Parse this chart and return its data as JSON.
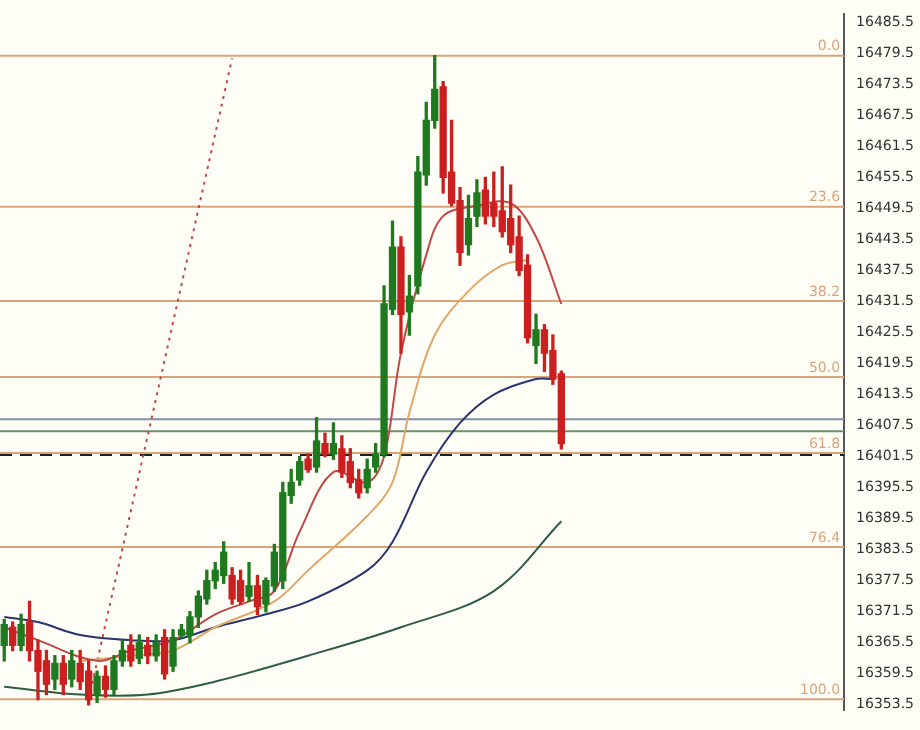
{
  "chart_data": {
    "type": "candlestick",
    "categories": [
      null,
      null,
      null,
      null,
      null,
      null,
      null,
      null,
      null,
      null,
      null,
      null,
      null,
      null,
      null,
      null,
      null,
      null,
      null,
      null,
      null,
      null,
      null,
      null,
      null,
      null,
      null,
      null,
      null,
      null,
      null,
      null,
      null,
      null,
      null,
      null,
      null,
      null,
      null,
      null,
      null,
      null,
      null,
      null,
      null,
      null,
      null,
      null,
      null,
      null,
      null,
      null,
      null,
      null,
      null,
      null,
      null,
      null,
      null,
      null,
      null,
      null,
      null,
      null,
      null,
      null,
      null,
      null,
      null,
      null,
      null,
      null,
      null,
      null,
      null,
      null,
      null,
      null,
      null,
      null,
      null,
      null,
      null,
      null,
      null,
      null,
      null,
      null,
      null,
      null,
      null,
      null,
      null,
      null,
      null,
      null,
      null,
      null,
      null,
      null
    ],
    "ohlc": [
      [
        16365,
        16370,
        16362,
        16369
      ],
      [
        16368.5,
        16369.5,
        16364,
        16365
      ],
      [
        16365,
        16371,
        16364,
        16369
      ],
      [
        16369.5,
        16373.5,
        16362,
        16364
      ],
      [
        16364,
        16366,
        16354.5,
        16360
      ],
      [
        16362,
        16364,
        16355.5,
        16357.5
      ],
      [
        16358.5,
        16363,
        16356.5,
        16361.5
      ],
      [
        16361.5,
        16363,
        16355.5,
        16357.5
      ],
      [
        16358.5,
        16364,
        16357,
        16362
      ],
      [
        16361.5,
        16364,
        16356.5,
        16358
      ],
      [
        16360,
        16362,
        16353.5,
        16354.5
      ],
      [
        16355.5,
        16360,
        16354,
        16359
      ],
      [
        16359,
        16361,
        16355,
        16356.5
      ],
      [
        16356.5,
        16363,
        16355.5,
        16362
      ],
      [
        16362,
        16366,
        16361,
        16364
      ],
      [
        16365,
        16367,
        16361,
        16362
      ],
      [
        16362.5,
        16367,
        16361.5,
        16365.5
      ],
      [
        16365,
        16366.5,
        16361.5,
        16363
      ],
      [
        16363,
        16367,
        16362,
        16365.5
      ],
      [
        16366.5,
        16368,
        16358.5,
        16359.5
      ],
      [
        16361,
        16368,
        16360,
        16366.5
      ],
      [
        16367,
        16369,
        16366.5,
        16368
      ],
      [
        16367,
        16371.5,
        16365.5,
        16370.5
      ],
      [
        16370.5,
        16375.5,
        16368.5,
        16374.5
      ],
      [
        16374,
        16379.5,
        16373,
        16377.5
      ],
      [
        16377.5,
        16381,
        16376,
        16379.5
      ],
      [
        16378.5,
        16385,
        16377,
        16383
      ],
      [
        16378.5,
        16380,
        16373,
        16374
      ],
      [
        16377.5,
        16379.5,
        16373,
        16373.5
      ],
      [
        16374.5,
        16381,
        16373.5,
        16376.5
      ],
      [
        16376.5,
        16378.5,
        16371,
        16372.5
      ],
      [
        16373,
        16378,
        16371.5,
        16377.5
      ],
      [
        16376.5,
        16384.5,
        16375.5,
        16383
      ],
      [
        16377.5,
        16396.5,
        16376,
        16394.5
      ],
      [
        16394,
        16399,
        16392.5,
        16396.5
      ],
      [
        16397,
        16401.5,
        16396,
        16400.5
      ],
      [
        16401,
        16402,
        16398.5,
        16399
      ],
      [
        16399.5,
        16409,
        16398.5,
        16404.5
      ],
      [
        16404,
        16406,
        16401.5,
        16402
      ],
      [
        16402,
        16408,
        16401,
        16404
      ],
      [
        16403,
        16405.5,
        16397.5,
        16398.5
      ],
      [
        16400.5,
        16403,
        16395.5,
        16396.5
      ],
      [
        16397,
        16399,
        16393.5,
        16394.5
      ],
      [
        16395.5,
        16401,
        16394.5,
        16399
      ],
      [
        16399.5,
        16404,
        16398.5,
        16402
      ],
      [
        16402,
        16434.5,
        16401.5,
        16431
      ],
      [
        16430,
        16447,
        16429,
        16442
      ],
      [
        16442,
        16444,
        16421.5,
        16429
      ],
      [
        16429.5,
        16436.5,
        16425,
        16432.5
      ],
      [
        16434.5,
        16459.5,
        16433,
        16456.5
      ],
      [
        16456,
        16470,
        16454,
        16466.5
      ],
      [
        16466.5,
        16479,
        16465,
        16472.5
      ],
      [
        16473,
        16474,
        16452.5,
        16455.5
      ],
      [
        16456.5,
        16466.5,
        16450,
        16450.5
      ],
      [
        16451,
        16453.5,
        16438.5,
        16441
      ],
      [
        16442.5,
        16452,
        16440.5,
        16447.5
      ],
      [
        16448,
        16455,
        16446,
        16452.5
      ],
      [
        16453,
        16455.5,
        16446.5,
        16448
      ],
      [
        16450.5,
        16456.5,
        16446,
        16448
      ],
      [
        16449,
        16457.5,
        16444,
        16445
      ],
      [
        16447.5,
        16454,
        16441,
        16442.5
      ],
      [
        16444,
        16448,
        16436.5,
        16437.5
      ],
      [
        16438.5,
        16440.5,
        16423.5,
        16424.5
      ],
      [
        16423,
        16429,
        16419.5,
        16426
      ],
      [
        16426,
        16427,
        16418,
        16421.5
      ],
      [
        16422,
        16425,
        16415.5,
        16416.5
      ],
      [
        16417.5,
        16418,
        16403,
        16404
      ],
      null,
      null,
      null,
      null,
      null,
      null,
      null,
      null,
      null,
      null,
      null,
      null,
      null,
      null,
      null,
      null,
      null,
      null,
      null,
      null,
      null,
      null,
      null,
      null,
      null,
      null,
      null,
      null,
      null,
      null,
      null,
      null,
      null
    ],
    "colors": [
      "#1f7a1f",
      "#cc1f1f",
      "#1f7a1f",
      "#cc1f1f",
      "#cc1f1f",
      "#cc1f1f",
      "#1f7a1f",
      "#cc1f1f",
      "#1f7a1f",
      "#cc1f1f",
      "#cc1f1f",
      "#1f7a1f",
      "#cc1f1f",
      "#1f7a1f",
      "#1f7a1f",
      "#cc1f1f",
      "#1f7a1f",
      "#cc1f1f",
      "#1f7a1f",
      "#cc1f1f",
      "#1f7a1f",
      "#1f7a1f",
      "#1f7a1f",
      "#1f7a1f",
      "#1f7a1f",
      "#1f7a1f",
      "#1f7a1f",
      "#cc1f1f",
      "#cc1f1f",
      "#1f7a1f",
      "#cc1f1f",
      "#1f7a1f",
      "#1f7a1f",
      "#1f7a1f",
      "#1f7a1f",
      "#1f7a1f",
      "#cc1f1f",
      "#1f7a1f",
      "#cc1f1f",
      "#1f7a1f",
      "#cc1f1f",
      "#cc1f1f",
      "#cc1f1f",
      "#1f7a1f",
      "#1f7a1f",
      "#1f7a1f",
      "#1f7a1f",
      "#cc1f1f",
      "#1f7a1f",
      "#1f7a1f",
      "#1f7a1f",
      "#1f7a1f",
      "#cc1f1f",
      "#cc1f1f",
      "#cc1f1f",
      "#1f7a1f",
      "#1f7a1f",
      "#cc1f1f",
      "#cc1f1f",
      "#cc1f1f",
      "#cc1f1f",
      "#cc1f1f",
      "#cc1f1f",
      "#1f7a1f",
      "#cc1f1f",
      "#cc1f1f",
      "#cc1f1f",
      null,
      null,
      null,
      null,
      null,
      null,
      null,
      null,
      null,
      null,
      null,
      null,
      null,
      null,
      null,
      null,
      null,
      null,
      null,
      null,
      null,
      null,
      null,
      null,
      null,
      null,
      null,
      null,
      null,
      null,
      null,
      null,
      null
    ],
    "series": [
      {
        "type": "line",
        "color": "#c04848",
        "values": [
          16368.5,
          null,
          null,
          null,
          16366,
          null,
          null,
          null,
          null,
          null,
          null,
          16362,
          null,
          null,
          null,
          16364,
          null,
          null,
          null,
          null,
          16366,
          null,
          null,
          null,
          null,
          16371,
          null,
          null,
          null,
          16373.5,
          null,
          null,
          16375.5,
          null,
          null,
          16387,
          null,
          null,
          null,
          16398.5,
          null,
          null,
          null,
          16396.5,
          null,
          16401.5,
          null,
          16421.5,
          null,
          null,
          16440.5,
          null,
          16448,
          null,
          null,
          null,
          16450,
          null,
          null,
          null,
          16450.5,
          null,
          null,
          16444,
          null,
          null,
          16431,
          null,
          null,
          null,
          null,
          null,
          null,
          null,
          null,
          null,
          null,
          null,
          null,
          null,
          null,
          null,
          null,
          null,
          null,
          null,
          null,
          null,
          null,
          null,
          null,
          null,
          null,
          null,
          null,
          null,
          null,
          null,
          null,
          null
        ]
      },
      {
        "type": "line",
        "color": "#e0a868",
        "values": [
          null,
          null,
          null,
          null,
          null,
          null,
          null,
          null,
          null,
          16362,
          null,
          null,
          null,
          null,
          null,
          16363,
          null,
          null,
          null,
          null,
          16364,
          null,
          null,
          null,
          null,
          16368.5,
          null,
          null,
          null,
          null,
          null,
          null,
          16373.5,
          null,
          null,
          null,
          16379.5,
          null,
          null,
          null,
          null,
          null,
          null,
          16390,
          null,
          null,
          16396.5,
          null,
          16410,
          null,
          null,
          16425,
          null,
          null,
          null,
          16433.5,
          null,
          null,
          null,
          16438.5,
          null,
          null,
          16439.5,
          null,
          null,
          null,
          null,
          null,
          null,
          null,
          null,
          null,
          null,
          null,
          null,
          null,
          null,
          null,
          null,
          null,
          null,
          null,
          null,
          null,
          null,
          null,
          null,
          null,
          null,
          null,
          null,
          null,
          null,
          null,
          null,
          null,
          null,
          null,
          null,
          null
        ]
      },
      {
        "type": "line",
        "color": "#2a3570",
        "values": [
          16370.5,
          null,
          null,
          null,
          16369.5,
          null,
          null,
          null,
          null,
          16367,
          null,
          null,
          null,
          null,
          null,
          16366,
          null,
          null,
          null,
          null,
          16366,
          null,
          null,
          null,
          null,
          16368.5,
          null,
          null,
          null,
          null,
          null,
          16371,
          null,
          null,
          null,
          null,
          16373.5,
          null,
          null,
          null,
          null,
          null,
          null,
          16379.5,
          null,
          null,
          16385,
          null,
          null,
          null,
          16398.5,
          null,
          null,
          null,
          16408,
          null,
          null,
          null,
          16413.5,
          null,
          null,
          null,
          null,
          16416.5,
          null,
          16416.5,
          null,
          null,
          null,
          null,
          null,
          null,
          null,
          null,
          null,
          null,
          null,
          null,
          null,
          null,
          null,
          null,
          null,
          null,
          null,
          null,
          null,
          null,
          null,
          null,
          null,
          null,
          null,
          null,
          null,
          null,
          null,
          null,
          null,
          null
        ]
      },
      {
        "type": "line",
        "color": "#2e5e40",
        "values": [
          16357,
          null,
          null,
          null,
          null,
          null,
          null,
          null,
          null,
          16355.5,
          null,
          null,
          null,
          null,
          null,
          null,
          null,
          16355.5,
          null,
          null,
          null,
          null,
          null,
          null,
          null,
          16358,
          null,
          null,
          null,
          null,
          null,
          null,
          null,
          null,
          null,
          null,
          16363,
          null,
          null,
          null,
          null,
          null,
          null,
          null,
          null,
          null,
          null,
          16368.5,
          null,
          null,
          null,
          null,
          null,
          null,
          null,
          null,
          null,
          null,
          16375.5,
          null,
          null,
          null,
          null,
          null,
          null,
          null,
          16389,
          null,
          null,
          null,
          null,
          null,
          null,
          null,
          null,
          null,
          null,
          null,
          null,
          null,
          null,
          null,
          null,
          null,
          null,
          null,
          null,
          null,
          null,
          null,
          null,
          null,
          null,
          null,
          null,
          null,
          null,
          null,
          null,
          null
        ]
      },
      {
        "type": "line",
        "color": "#c04848",
        "line_style": "dotted",
        "values": [
          null,
          null,
          null,
          null,
          null,
          null,
          null,
          null,
          null,
          null,
          16354.5,
          null,
          null,
          null,
          null,
          null,
          null,
          null,
          null,
          null,
          null,
          null,
          null,
          null,
          null,
          null,
          null,
          16478.5,
          null,
          null,
          null,
          null,
          null,
          null,
          null,
          null,
          null,
          null,
          null,
          null,
          null,
          null,
          null,
          null,
          null,
          null,
          null,
          null,
          null,
          null,
          null,
          null,
          null,
          null,
          null,
          null,
          null,
          null,
          null,
          null,
          null,
          null,
          null,
          null,
          null,
          null,
          null,
          null,
          null,
          null,
          null,
          null,
          null,
          null,
          null,
          null,
          null,
          null,
          null,
          null,
          null,
          null,
          null,
          null,
          null,
          null,
          null,
          null,
          null,
          null,
          null,
          null,
          null,
          null,
          null,
          null,
          null,
          null,
          null,
          null
        ]
      }
    ],
    "ylim": [
      16352.5,
      16487
    ],
    "yticks": [
      16353.5,
      16359.5,
      16365.5,
      16371.5,
      16377.5,
      16383.5,
      16389.5,
      16395.5,
      16401.5,
      16407.5,
      16413.5,
      16419.5,
      16425.5,
      16431.5,
      16437.5,
      16443.5,
      16449.5,
      16455.5,
      16461.5,
      16467.5,
      16473.5,
      16479.5,
      16485.5
    ],
    "ref_lines": [
      {
        "axis": "y",
        "value": 16479,
        "color": "#d9a47c"
      },
      {
        "axis": "y",
        "value": 16449.8,
        "color": "#d9a47c"
      },
      {
        "axis": "y",
        "value": 16431.6,
        "color": "#d9a47c"
      },
      {
        "axis": "y",
        "value": 16416.9,
        "color": "#d9a47c"
      },
      {
        "axis": "y",
        "value": 16402.2,
        "color": "#d9a47c"
      },
      {
        "axis": "y",
        "value": 16384,
        "color": "#d9a47c"
      },
      {
        "axis": "y",
        "value": 16354.6,
        "color": "#d9a47c"
      },
      {
        "axis": "y",
        "value": 16408.7,
        "color": "#8090a8"
      },
      {
        "axis": "y",
        "value": 16406.4,
        "color": "#6b8f6b"
      },
      {
        "axis": "y",
        "value": 16401.8,
        "color": "#202020",
        "line_style": "dashed"
      }
    ],
    "annotations": [
      {
        "text": "0.0",
        "y": 16479
      },
      {
        "text": "23.6",
        "y": 16449.8
      },
      {
        "text": "38.2",
        "y": 16431.6
      },
      {
        "text": "50.0",
        "y": 16416.9
      },
      {
        "text": "61.8",
        "y": 16402.2
      },
      {
        "text": "76.4",
        "y": 16384
      },
      {
        "text": "100.0",
        "y": 16354.6
      }
    ],
    "grid": false,
    "legend": false,
    "marker": "none"
  }
}
